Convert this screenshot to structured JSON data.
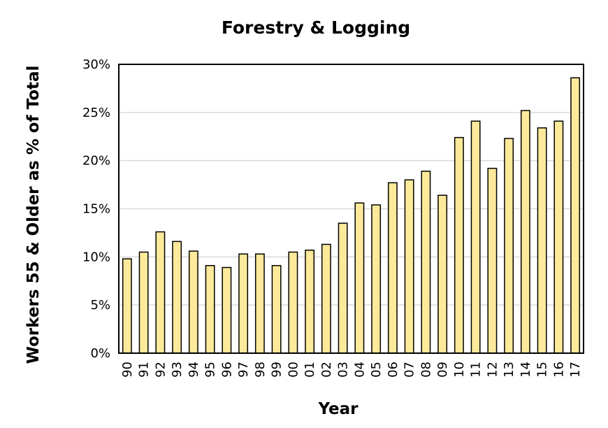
{
  "chart_data": {
    "type": "bar",
    "title": "Forestry & Logging",
    "xlabel": "Year",
    "ylabel": "Workers 55 & Older as % of Total",
    "categories": [
      "90",
      "91",
      "92",
      "93",
      "94",
      "95",
      "96",
      "97",
      "98",
      "99",
      "00",
      "01",
      "02",
      "03",
      "04",
      "05",
      "06",
      "07",
      "08",
      "09",
      "10",
      "11",
      "12",
      "13",
      "14",
      "15",
      "16",
      "17"
    ],
    "values": [
      9.8,
      10.5,
      12.6,
      11.6,
      10.6,
      9.1,
      8.9,
      10.3,
      10.3,
      9.1,
      10.5,
      10.7,
      11.3,
      13.5,
      15.6,
      15.4,
      17.7,
      18.0,
      18.9,
      16.4,
      22.4,
      24.1,
      19.2,
      22.3,
      25.2,
      23.4,
      24.1,
      28.6
    ],
    "ylim": [
      0,
      30
    ],
    "yticks": [
      0,
      5,
      10,
      15,
      20,
      25,
      30
    ],
    "ytick_labels": [
      "0%",
      "5%",
      "10%",
      "15%",
      "20%",
      "25%",
      "30%"
    ],
    "grid": "horizontal",
    "legend": "none",
    "colors": {
      "bar_fill": "#fde99a",
      "bar_stroke": "#000000",
      "grid": "#d9d9d9"
    }
  }
}
